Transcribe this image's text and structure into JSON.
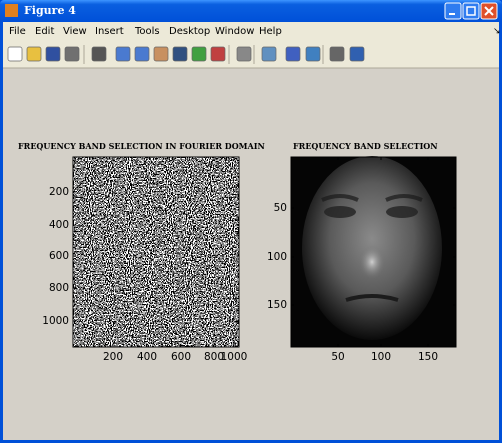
{
  "window": {
    "title": "Figure 4",
    "menu": [
      "File",
      "Edit",
      "View",
      "Insert",
      "Tools",
      "Desktop",
      "Window",
      "Help"
    ]
  },
  "axes": [
    {
      "title": "FREQUENCY BAND SELECTION IN FOURIER DOMAIN",
      "xticks": [
        200,
        400,
        600,
        800,
        1000
      ],
      "yticks": [
        200,
        400,
        600,
        800,
        1000
      ]
    },
    {
      "title": "FREQUENCY BAND SELECTION",
      "xticks": [
        50,
        100,
        150
      ],
      "yticks": [
        50,
        100,
        150
      ]
    }
  ]
}
